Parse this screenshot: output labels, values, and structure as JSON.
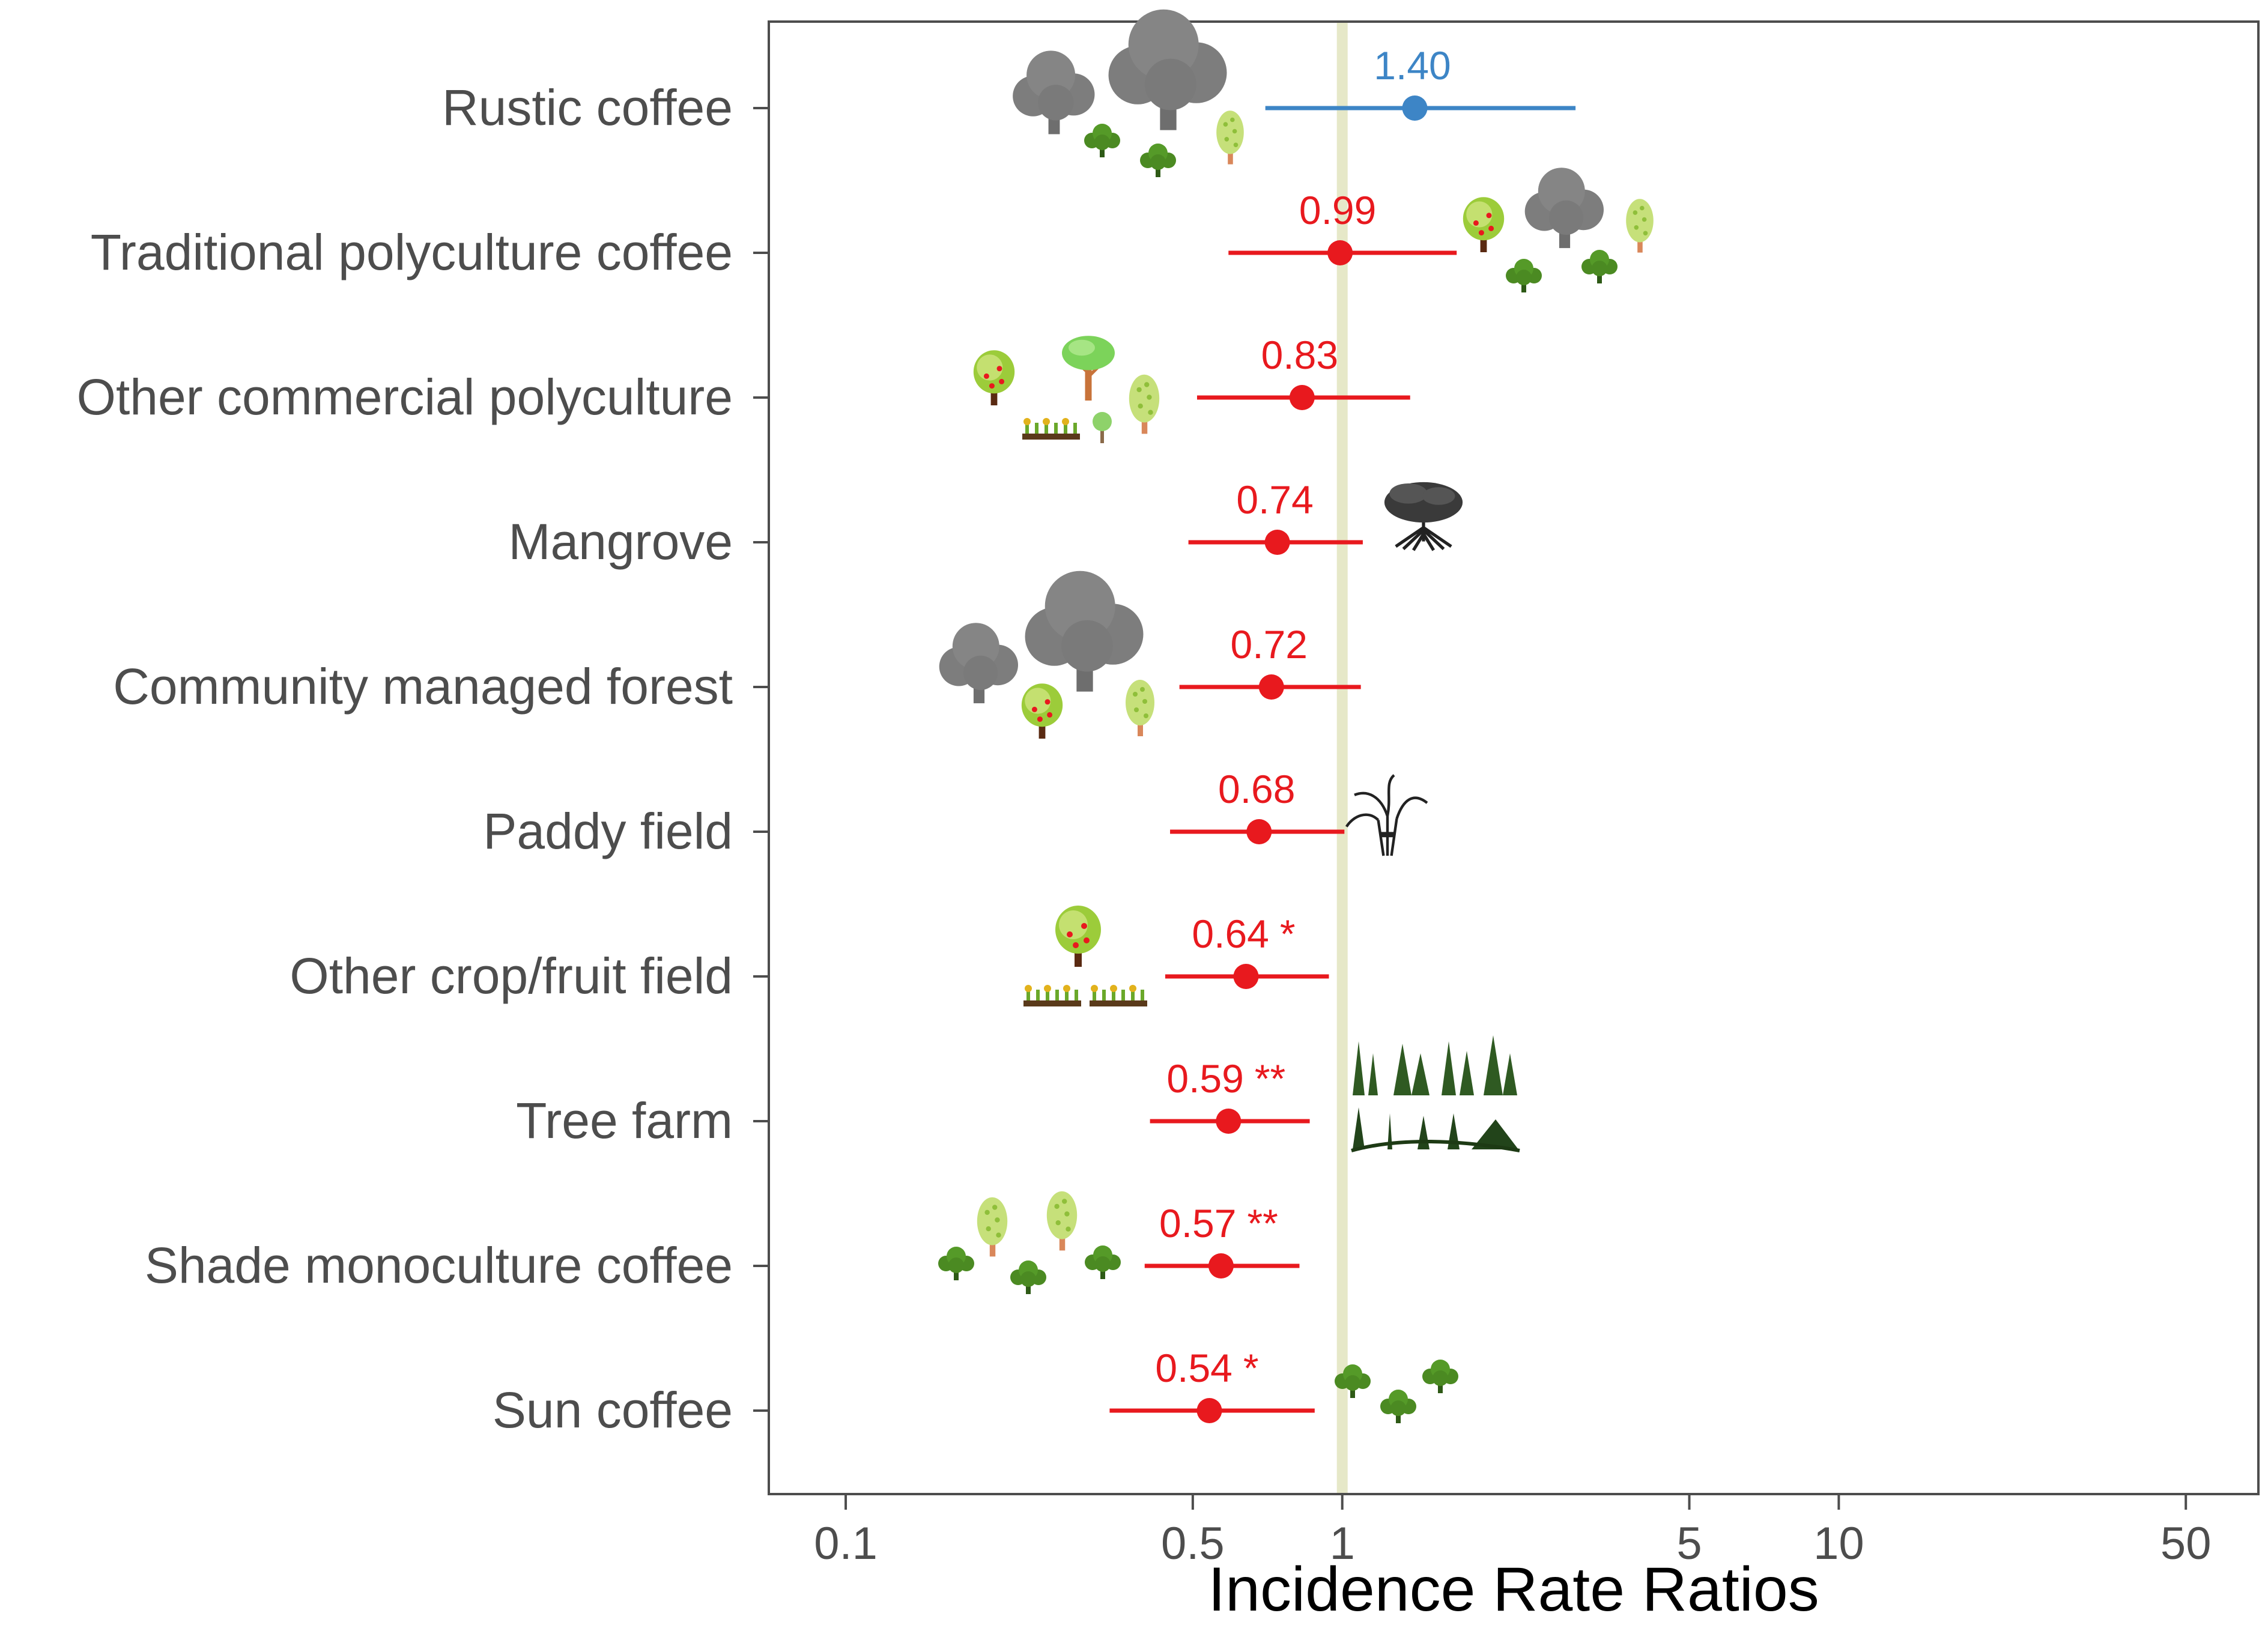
{
  "chart_data": {
    "type": "forest",
    "title": "",
    "xlabel": "Incidence Rate Ratios",
    "ylabel": "",
    "x_scale": "log",
    "xlim": [
      0.07,
      70
    ],
    "x_ticks": [
      0.1,
      0.5,
      1,
      5,
      10,
      50
    ],
    "x_tick_labels": [
      "0.1",
      "0.5",
      "1",
      "5",
      "10",
      "50"
    ],
    "reference_line": 1,
    "grid": false,
    "colors": {
      "positive": "#3d85c6",
      "negative": "#e8191e",
      "reference": "#e6e8c8",
      "frame": "#4d4d4d"
    },
    "rows": [
      {
        "label": "Rustic coffee",
        "irr": 1.4,
        "ci_low": 0.7,
        "ci_high": 2.95,
        "text": "1.40",
        "significance": "",
        "direction": "positive",
        "icons": [
          "large-tree-icon",
          "large-tree-icon",
          "shrub-icon",
          "shrub-icon",
          "fruit-tree-icon"
        ]
      },
      {
        "label": "Traditional polyculture coffee",
        "irr": 0.99,
        "ci_low": 0.59,
        "ci_high": 1.7,
        "text": "0.99",
        "significance": "",
        "direction": "negative",
        "icons": [
          "apple-tree-icon",
          "large-tree-icon",
          "fruit-tree-icon",
          "shrub-icon",
          "shrub-icon"
        ]
      },
      {
        "label": "Other commercial polyculture",
        "irr": 0.83,
        "ci_low": 0.51,
        "ci_high": 1.37,
        "text": "0.83",
        "significance": "",
        "direction": "negative",
        "icons": [
          "apple-tree-icon",
          "leafy-tree-icon",
          "fruit-tree-icon",
          "crop-bed-icon",
          "sapling-icon"
        ]
      },
      {
        "label": "Mangrove",
        "irr": 0.74,
        "ci_low": 0.49,
        "ci_high": 1.1,
        "text": "0.74",
        "significance": "",
        "direction": "negative",
        "icons": [
          "mangrove-icon"
        ]
      },
      {
        "label": "Community managed forest",
        "irr": 0.72,
        "ci_low": 0.47,
        "ci_high": 1.09,
        "text": "0.72",
        "significance": "",
        "direction": "negative",
        "icons": [
          "large-tree-icon",
          "large-tree-icon",
          "apple-tree-icon",
          "fruit-tree-icon"
        ]
      },
      {
        "label": "Paddy field",
        "irr": 0.68,
        "ci_low": 0.45,
        "ci_high": 1.01,
        "text": "0.68",
        "significance": "",
        "direction": "negative",
        "icons": [
          "rice-sheaf-icon"
        ]
      },
      {
        "label": "Other crop/fruit field",
        "irr": 0.64,
        "ci_low": 0.44,
        "ci_high": 0.94,
        "text": "0.64",
        "significance": "*",
        "direction": "negative",
        "icons": [
          "apple-tree-icon",
          "crop-bed-icon",
          "crop-bed-icon"
        ]
      },
      {
        "label": "Tree farm",
        "irr": 0.59,
        "ci_low": 0.41,
        "ci_high": 0.86,
        "text": "0.59",
        "significance": "**",
        "direction": "negative",
        "icons": [
          "conifer-forest-icon"
        ]
      },
      {
        "label": "Shade monoculture coffee",
        "irr": 0.57,
        "ci_low": 0.4,
        "ci_high": 0.82,
        "text": "0.57",
        "significance": "**",
        "direction": "negative",
        "icons": [
          "fruit-tree-icon",
          "fruit-tree-icon",
          "shrub-icon",
          "shrub-icon",
          "shrub-icon"
        ]
      },
      {
        "label": "Sun coffee",
        "irr": 0.54,
        "ci_low": 0.34,
        "ci_high": 0.88,
        "text": "0.54",
        "significance": "*",
        "direction": "negative",
        "icons": [
          "shrub-icon",
          "shrub-icon",
          "shrub-icon"
        ]
      }
    ]
  }
}
